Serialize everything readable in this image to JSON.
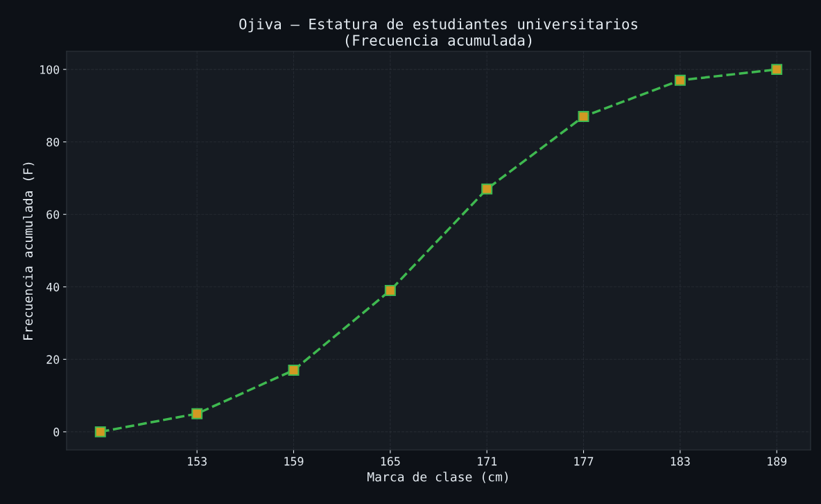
{
  "chart_data": {
    "type": "line",
    "title": "Ojiva – Estatura de estudiantes universitarios\n(Frecuencia acumulada)",
    "xlabel": "Marca de clase (cm)",
    "ylabel": "Frecuencia acumulada (F)",
    "x": [
      147,
      153,
      159,
      165,
      171,
      177,
      183,
      189
    ],
    "series": [
      {
        "color": "#3fb950",
        "values": [
          0,
          5,
          17,
          39,
          67,
          87,
          97,
          100
        ]
      }
    ],
    "xlim": [
      144.9,
      191.1
    ],
    "xticks": [
      153,
      159,
      165,
      171,
      177,
      183,
      189
    ],
    "ylim": [
      -5,
      105
    ],
    "yticks": [
      0,
      20,
      40,
      60,
      80,
      100
    ],
    "grid": true,
    "marker": "square",
    "line_style": "dashed"
  }
}
